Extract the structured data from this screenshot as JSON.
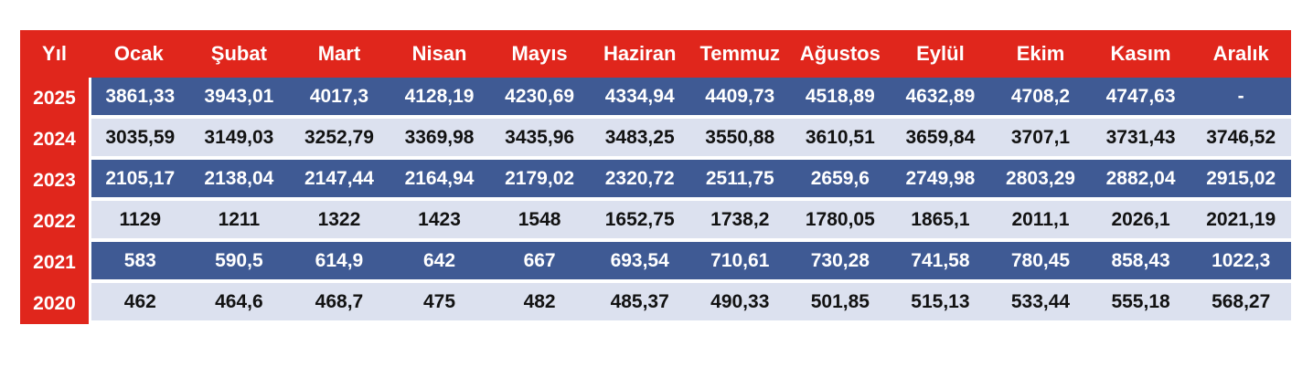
{
  "table": {
    "year_header": "Yıl",
    "month_headers": [
      "Ocak",
      "Şubat",
      "Mart",
      "Nisan",
      "Mayıs",
      "Haziran",
      "Temmuz",
      "Ağustos",
      "Eylül",
      "Ekim",
      "Kasım",
      "Aralık"
    ],
    "rows": [
      {
        "year": "2025",
        "values": [
          "3861,33",
          "3943,01",
          "4017,3",
          "4128,19",
          "4230,69",
          "4334,94",
          "4409,73",
          "4518,89",
          "4632,89",
          "4708,2",
          "4747,63",
          "-"
        ]
      },
      {
        "year": "2024",
        "values": [
          "3035,59",
          "3149,03",
          "3252,79",
          "3369,98",
          "3435,96",
          "3483,25",
          "3550,88",
          "3610,51",
          "3659,84",
          "3707,1",
          "3731,43",
          "3746,52"
        ]
      },
      {
        "year": "2023",
        "values": [
          "2105,17",
          "2138,04",
          "2147,44",
          "2164,94",
          "2179,02",
          "2320,72",
          "2511,75",
          "2659,6",
          "2749,98",
          "2803,29",
          "2882,04",
          "2915,02"
        ]
      },
      {
        "year": "2022",
        "values": [
          "1129",
          "1211",
          "1322",
          "1423",
          "1548",
          "1652,75",
          "1738,2",
          "1780,05",
          "1865,1",
          "2011,1",
          "2026,1",
          "2021,19"
        ]
      },
      {
        "year": "2021",
        "values": [
          "583",
          "590,5",
          "614,9",
          "642",
          "667",
          "693,54",
          "710,61",
          "730,28",
          "741,58",
          "780,45",
          "858,43",
          "1022,3"
        ]
      },
      {
        "year": "2020",
        "values": [
          "462",
          "464,6",
          "468,7",
          "475",
          "482",
          "485,37",
          "490,33",
          "501,85",
          "515,13",
          "533,44",
          "555,18",
          "568,27"
        ]
      }
    ],
    "colors": {
      "header_bg": "#e0261c",
      "header_text": "#ffffff",
      "year_col_bg": "#e0261c",
      "row_dark_bg": "#3f5a94",
      "row_dark_text": "#ffffff",
      "row_light_bg": "#dce1ef",
      "row_light_text": "#121212",
      "separator": "#ffffff"
    }
  },
  "chart_data": {
    "type": "table",
    "categories": [
      "Ocak",
      "Şubat",
      "Mart",
      "Nisan",
      "Mayıs",
      "Haziran",
      "Temmuz",
      "Ağustos",
      "Eylül",
      "Ekim",
      "Kasım",
      "Aralık"
    ],
    "row_label_header": "Yıl",
    "series": [
      {
        "name": "2025",
        "values": [
          3861.33,
          3943.01,
          4017.3,
          4128.19,
          4230.69,
          4334.94,
          4409.73,
          4518.89,
          4632.89,
          4708.2,
          4747.63,
          null
        ]
      },
      {
        "name": "2024",
        "values": [
          3035.59,
          3149.03,
          3252.79,
          3369.98,
          3435.96,
          3483.25,
          3550.88,
          3610.51,
          3659.84,
          3707.1,
          3731.43,
          3746.52
        ]
      },
      {
        "name": "2023",
        "values": [
          2105.17,
          2138.04,
          2147.44,
          2164.94,
          2179.02,
          2320.72,
          2511.75,
          2659.6,
          2749.98,
          2803.29,
          2882.04,
          2915.02
        ]
      },
      {
        "name": "2022",
        "values": [
          1129,
          1211,
          1322,
          1423,
          1548,
          1652.75,
          1738.2,
          1780.05,
          1865.1,
          2011.1,
          2026.1,
          2021.19
        ]
      },
      {
        "name": "2021",
        "values": [
          583,
          590.5,
          614.9,
          642,
          667,
          693.54,
          710.61,
          730.28,
          741.58,
          780.45,
          858.43,
          1022.3
        ]
      },
      {
        "name": "2020",
        "values": [
          462,
          464.6,
          468.7,
          475,
          482,
          485.37,
          490.33,
          501.85,
          515.13,
          533.44,
          555.18,
          568.27
        ]
      }
    ]
  }
}
